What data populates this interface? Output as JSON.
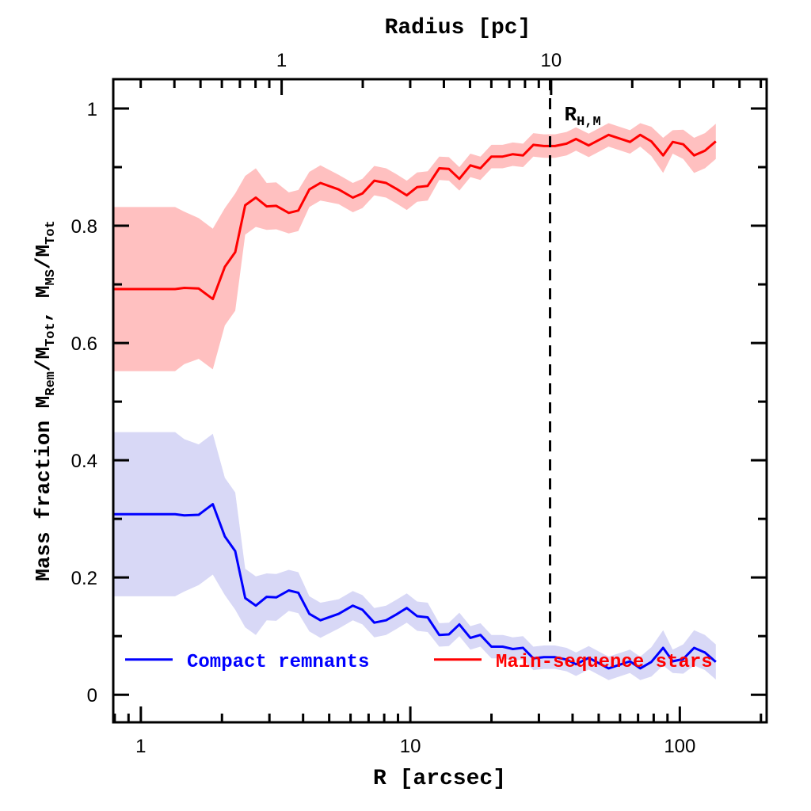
{
  "chart_data": {
    "type": "line",
    "title": "",
    "xlabel": "R [arcsec]",
    "xlabel_top": "Radius [pc]",
    "ylabel_parts": [
      {
        "text": "Mass fraction  M",
        "sub": false
      },
      {
        "text": "Rem",
        "sub": true
      },
      {
        "text": "/M",
        "sub": false
      },
      {
        "text": "Tot",
        "sub": true
      },
      {
        "text": ", M",
        "sub": false
      },
      {
        "text": "MS",
        "sub": true
      },
      {
        "text": "/M",
        "sub": false
      },
      {
        "text": "Tot",
        "sub": true
      }
    ],
    "xscale": "log",
    "xlim": [
      0.79,
      210
    ],
    "ylim": [
      -0.047,
      1.05
    ],
    "xticks": [
      1,
      10,
      100
    ],
    "xtick_labels": [
      "1",
      "10",
      "100"
    ],
    "top_axis": {
      "arcsec_per_pc": 3.33,
      "ticks": [
        1,
        10
      ],
      "tick_labels": [
        "1",
        "10"
      ]
    },
    "yticks": [
      0,
      0.2,
      0.4,
      0.6,
      0.8,
      1
    ],
    "ytick_labels": [
      "0",
      "0.2",
      "0.4",
      "0.6",
      "0.8",
      "1"
    ],
    "grid": false,
    "legend_placement": "bottom",
    "x": [
      0.79,
      1.0,
      1.34,
      1.45,
      1.64,
      1.85,
      2.05,
      2.24,
      2.44,
      2.67,
      2.93,
      3.18,
      3.54,
      3.84,
      4.22,
      4.64,
      5.42,
      6.12,
      6.64,
      7.35,
      8.13,
      8.88,
      9.7,
      10.6,
      11.6,
      12.8,
      13.9,
      15.2,
      16.7,
      18.2,
      20.0,
      22.0,
      24.0,
      26.2,
      28.6,
      31.3,
      34.4,
      38.0,
      41.2,
      45.9,
      54.4,
      65.3,
      71.3,
      78.4,
      86.7,
      94.1,
      103,
      113,
      124,
      136
    ],
    "series": [
      {
        "name": "Compact remnants",
        "color": "#0000ff",
        "band_color": "#d8d8f6",
        "values": [
          0.308,
          0.308,
          0.308,
          0.306,
          0.307,
          0.325,
          0.27,
          0.245,
          0.165,
          0.152,
          0.167,
          0.166,
          0.178,
          0.174,
          0.138,
          0.127,
          0.138,
          0.152,
          0.145,
          0.123,
          0.127,
          0.137,
          0.148,
          0.134,
          0.132,
          0.102,
          0.103,
          0.12,
          0.097,
          0.102,
          0.082,
          0.082,
          0.078,
          0.08,
          0.062,
          0.064,
          0.064,
          0.06,
          0.052,
          0.063,
          0.045,
          0.057,
          0.045,
          0.056,
          0.08,
          0.057,
          0.061,
          0.08,
          0.072,
          0.056
        ],
        "err": [
          0.14,
          0.14,
          0.14,
          0.13,
          0.12,
          0.12,
          0.1,
          0.1,
          0.05,
          0.05,
          0.04,
          0.04,
          0.035,
          0.035,
          0.03,
          0.03,
          0.025,
          0.025,
          0.025,
          0.025,
          0.025,
          0.025,
          0.025,
          0.025,
          0.025,
          0.02,
          0.02,
          0.02,
          0.02,
          0.02,
          0.02,
          0.02,
          0.02,
          0.02,
          0.02,
          0.02,
          0.02,
          0.02,
          0.02,
          0.02,
          0.02,
          0.02,
          0.02,
          0.025,
          0.03,
          0.02,
          0.025,
          0.03,
          0.03,
          0.03
        ]
      },
      {
        "name": "Main-sequence stars",
        "color": "#ff0000",
        "band_color": "#ffc0c0",
        "values": [
          0.692,
          0.692,
          0.692,
          0.694,
          0.693,
          0.675,
          0.73,
          0.755,
          0.835,
          0.848,
          0.833,
          0.834,
          0.822,
          0.826,
          0.862,
          0.873,
          0.862,
          0.848,
          0.855,
          0.877,
          0.873,
          0.863,
          0.852,
          0.866,
          0.868,
          0.898,
          0.897,
          0.88,
          0.903,
          0.898,
          0.918,
          0.918,
          0.922,
          0.92,
          0.938,
          0.936,
          0.936,
          0.94,
          0.948,
          0.937,
          0.955,
          0.943,
          0.955,
          0.944,
          0.92,
          0.943,
          0.939,
          0.92,
          0.928,
          0.944
        ],
        "err": [
          0.14,
          0.14,
          0.14,
          0.13,
          0.12,
          0.12,
          0.1,
          0.1,
          0.05,
          0.05,
          0.04,
          0.04,
          0.035,
          0.035,
          0.03,
          0.03,
          0.025,
          0.025,
          0.025,
          0.025,
          0.025,
          0.025,
          0.025,
          0.025,
          0.025,
          0.02,
          0.02,
          0.02,
          0.02,
          0.02,
          0.02,
          0.02,
          0.02,
          0.02,
          0.02,
          0.02,
          0.02,
          0.02,
          0.02,
          0.02,
          0.02,
          0.02,
          0.02,
          0.025,
          0.03,
          0.02,
          0.025,
          0.03,
          0.03,
          0.03
        ]
      }
    ],
    "annotations": [
      {
        "type": "vline",
        "x": 33,
        "style": "dashed",
        "label": "R",
        "label_sub": "H,M"
      }
    ]
  }
}
